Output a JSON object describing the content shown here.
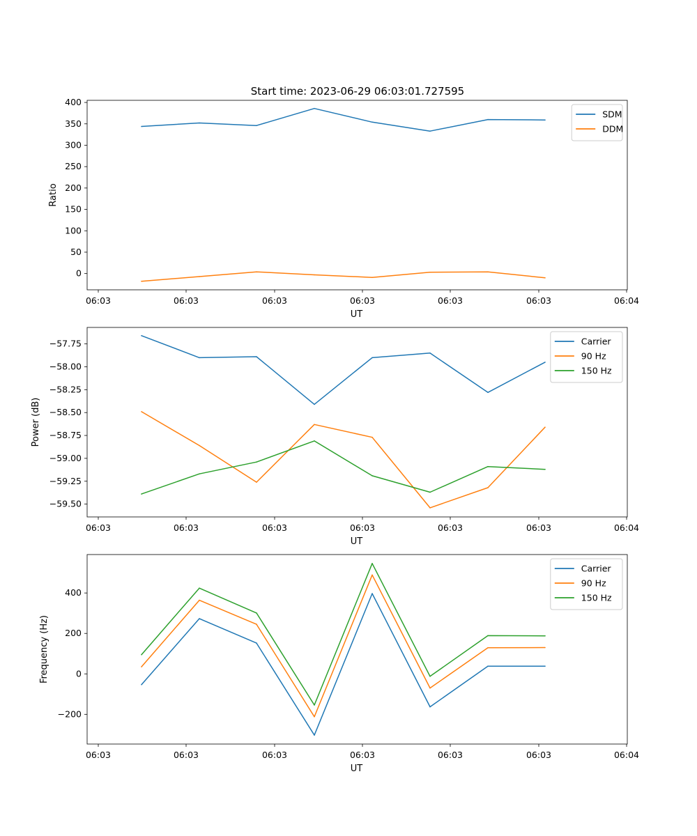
{
  "figure_title": "Start time: 2023-06-29 06:03:01.727595",
  "colors": {
    "blue": "#1f77b4",
    "orange": "#ff7f0e",
    "green": "#2ca02c"
  },
  "chart_data": [
    {
      "type": "line",
      "title": "Start time: 2023-06-29 06:03:01.727595",
      "xlabel": "UT",
      "ylabel": "Ratio",
      "x_tick_labels": [
        "06:03",
        "06:03",
        "06:03",
        "06:03",
        "06:03",
        "06:03",
        "06:04"
      ],
      "y_ticks": [
        0,
        50,
        100,
        150,
        200,
        250,
        300,
        350,
        400
      ],
      "y_tick_labels": [
        "0",
        "50",
        "100",
        "150",
        "200",
        "250",
        "300",
        "350",
        "400"
      ],
      "ylim": [
        -38,
        405
      ],
      "grid": false,
      "legend_position": "top-right",
      "series": [
        {
          "name": "SDM",
          "color": "#1f77b4",
          "values": [
            344,
            352,
            346,
            386,
            354,
            333,
            360,
            359
          ]
        },
        {
          "name": "DDM",
          "color": "#ff7f0e",
          "values": [
            -18,
            -7,
            4,
            -3,
            -9,
            3,
            4,
            -10
          ]
        }
      ]
    },
    {
      "type": "line",
      "xlabel": "UT",
      "ylabel": "Power (dB)",
      "x_tick_labels": [
        "06:03",
        "06:03",
        "06:03",
        "06:03",
        "06:03",
        "06:03",
        "06:04"
      ],
      "y_ticks": [
        -59.5,
        -59.25,
        -59.0,
        -58.75,
        -58.5,
        -58.25,
        -58.0,
        -57.75
      ],
      "y_tick_labels": [
        "−59.50",
        "−59.25",
        "−59.00",
        "−58.75",
        "−58.50",
        "−58.25",
        "−58.00",
        "−57.75"
      ],
      "ylim": [
        -59.64,
        -57.57
      ],
      "grid": false,
      "legend_position": "top-right",
      "series": [
        {
          "name": "Carrier",
          "color": "#1f77b4",
          "values": [
            -57.66,
            -57.9,
            -57.89,
            -58.41,
            -57.9,
            -57.85,
            -58.28,
            -57.95
          ]
        },
        {
          "name": "90 Hz",
          "color": "#ff7f0e",
          "values": [
            -58.49,
            -58.86,
            -59.26,
            -58.63,
            -58.77,
            -59.54,
            -59.32,
            -58.66
          ]
        },
        {
          "name": "150 Hz",
          "color": "#2ca02c",
          "values": [
            -59.39,
            -59.17,
            -59.04,
            -58.81,
            -59.19,
            -59.37,
            -59.09,
            -59.12
          ]
        }
      ]
    },
    {
      "type": "line",
      "xlabel": "UT",
      "ylabel": "Frequency (Hz)",
      "x_tick_labels": [
        "06:03",
        "06:03",
        "06:03",
        "06:03",
        "06:03",
        "06:03",
        "06:04"
      ],
      "y_ticks": [
        -200,
        0,
        200,
        400
      ],
      "y_tick_labels": [
        "−200",
        "0",
        "200",
        "400"
      ],
      "ylim": [
        -347,
        590
      ],
      "grid": false,
      "legend_position": "top-right",
      "series": [
        {
          "name": "Carrier",
          "color": "#1f77b4",
          "values": [
            -53,
            273,
            152,
            -303,
            397,
            -163,
            38,
            38
          ]
        },
        {
          "name": "90 Hz",
          "color": "#ff7f0e",
          "values": [
            35,
            364,
            245,
            -212,
            489,
            -70,
            129,
            130
          ]
        },
        {
          "name": "150 Hz",
          "color": "#2ca02c",
          "values": [
            95,
            424,
            301,
            -154,
            546,
            -12,
            189,
            188
          ]
        }
      ]
    }
  ]
}
